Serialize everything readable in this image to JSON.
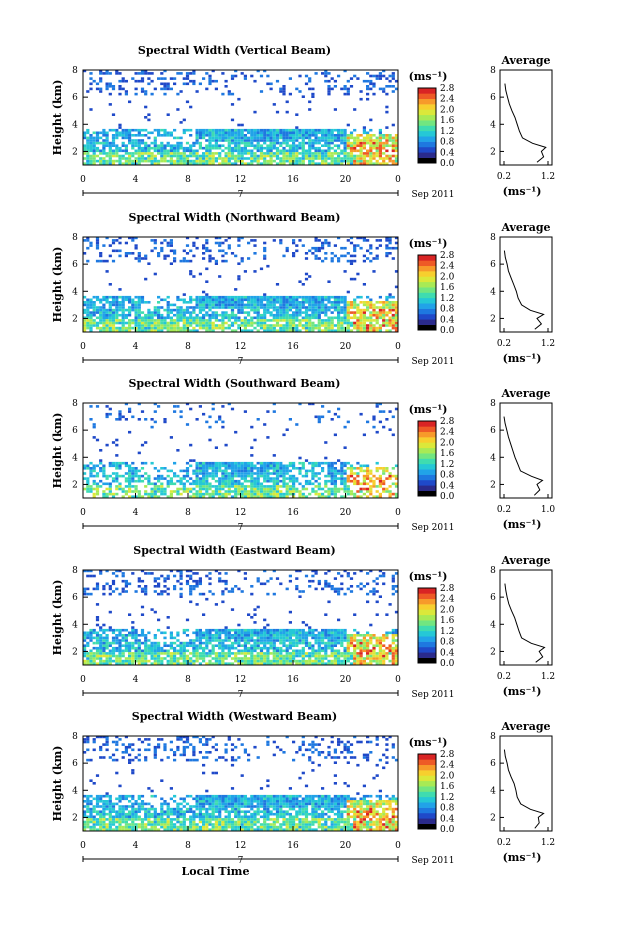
{
  "colors": {
    "colormap": [
      "#000000",
      "#2a2a8c",
      "#1f49c9",
      "#1e78e0",
      "#21a3e8",
      "#25c8d6",
      "#3fdcb0",
      "#72e680",
      "#a8ea55",
      "#dbe83a",
      "#f7cf2e",
      "#f79a2a",
      "#ee5a26",
      "#d92424"
    ],
    "axis": "#000000",
    "background": "#ffffff"
  },
  "chart_data": [
    {
      "type": "heatmap",
      "title": "Spectral Width (Vertical Beam)",
      "ylabel": "Height (km)",
      "xlabel": "",
      "x_ticks": [
        "0",
        "4",
        "8",
        "12",
        "16",
        "20",
        "0"
      ],
      "x_range": [
        0,
        24
      ],
      "day_label": "7",
      "date_label": "Sep 2011",
      "y_ticks": [
        "2",
        "4",
        "6",
        "8"
      ],
      "y_range": [
        1,
        8
      ],
      "colorbar": {
        "unit": "(ms⁻¹)",
        "ticks": [
          "0.0",
          "0.4",
          "0.8",
          "1.2",
          "1.6",
          "2.0",
          "2.4",
          "2.8"
        ],
        "range": [
          0.0,
          2.8
        ]
      },
      "profile": {
        "title": "Average",
        "xlabel": "(ms⁻¹)",
        "x_ticks": [
          "0.2",
          "1.2"
        ],
        "x_range": [
          0.2,
          1.2
        ],
        "y_ticks": [
          "2",
          "4",
          "6",
          "8"
        ],
        "y_range": [
          1,
          8
        ],
        "heights": [
          1.2,
          1.6,
          2.0,
          2.3,
          2.6,
          3.0,
          3.5,
          4.0,
          4.5,
          5.0,
          5.5,
          6.0,
          6.5,
          7.0
        ],
        "values": [
          0.95,
          1.1,
          1.05,
          1.15,
          0.85,
          0.62,
          0.55,
          0.5,
          0.45,
          0.38,
          0.32,
          0.28,
          0.24,
          0.22
        ]
      }
    },
    {
      "type": "heatmap",
      "title": "Spectral Width (Northward Beam)",
      "ylabel": "Height (km)",
      "xlabel": "",
      "x_ticks": [
        "0",
        "4",
        "8",
        "12",
        "16",
        "20",
        "0"
      ],
      "x_range": [
        0,
        24
      ],
      "day_label": "7",
      "date_label": "Sep 2011",
      "y_ticks": [
        "2",
        "4",
        "6",
        "8"
      ],
      "y_range": [
        1,
        8
      ],
      "colorbar": {
        "unit": "(ms⁻¹)",
        "ticks": [
          "0.0",
          "0.4",
          "0.8",
          "1.2",
          "1.6",
          "2.0",
          "2.4",
          "2.8"
        ],
        "range": [
          0.0,
          2.8
        ]
      },
      "profile": {
        "title": "Average",
        "xlabel": "(ms⁻¹)",
        "x_ticks": [
          "0.2",
          "1.2"
        ],
        "x_range": [
          0.2,
          1.2
        ],
        "heights": [
          1.2,
          1.6,
          2.0,
          2.3,
          2.6,
          3.0,
          3.5,
          4.0,
          4.5,
          5.0,
          5.5,
          6.0,
          6.5,
          7.0
        ],
        "values": [
          0.9,
          1.05,
          0.95,
          1.1,
          0.8,
          0.6,
          0.52,
          0.48,
          0.42,
          0.36,
          0.3,
          0.27,
          0.23,
          0.21
        ]
      }
    },
    {
      "type": "heatmap",
      "title": "Spectral Width (Southward Beam)",
      "ylabel": "Height (km)",
      "xlabel": "",
      "x_ticks": [
        "0",
        "4",
        "8",
        "12",
        "16",
        "20",
        "0"
      ],
      "x_range": [
        0,
        24
      ],
      "day_label": "7",
      "date_label": "Sep 2011",
      "y_ticks": [
        "2",
        "4",
        "6",
        "8"
      ],
      "y_range": [
        1,
        8
      ],
      "colorbar": {
        "unit": "(ms⁻¹)",
        "ticks": [
          "0.0",
          "0.4",
          "0.8",
          "1.2",
          "1.6",
          "2.0",
          "2.4",
          "2.8"
        ],
        "range": [
          0.0,
          2.8
        ]
      },
      "profile": {
        "title": "Average",
        "xlabel": "(ms⁻¹)",
        "x_ticks": [
          "0.2",
          "1.0"
        ],
        "x_range": [
          0.2,
          1.0
        ],
        "heights": [
          1.2,
          1.6,
          2.0,
          2.3,
          2.6,
          3.0,
          3.5,
          4.0,
          4.5,
          5.0,
          5.5,
          6.0,
          6.5,
          7.0
        ],
        "values": [
          0.75,
          0.85,
          0.8,
          0.9,
          0.7,
          0.5,
          0.45,
          0.4,
          0.36,
          0.32,
          0.28,
          0.25,
          0.22,
          0.2
        ]
      }
    },
    {
      "type": "heatmap",
      "title": "Spectral Width (Eastward Beam)",
      "ylabel": "Height (km)",
      "xlabel": "",
      "x_ticks": [
        "0",
        "4",
        "8",
        "12",
        "16",
        "20",
        "0"
      ],
      "x_range": [
        0,
        24
      ],
      "day_label": "7",
      "date_label": "Sep 2011",
      "y_ticks": [
        "2",
        "4",
        "6",
        "8"
      ],
      "y_range": [
        1,
        8
      ],
      "colorbar": {
        "unit": "(ms⁻¹)",
        "ticks": [
          "0.0",
          "0.4",
          "0.8",
          "1.2",
          "1.6",
          "2.0",
          "2.4",
          "2.8"
        ],
        "range": [
          0.0,
          2.8
        ]
      },
      "profile": {
        "title": "Average",
        "xlabel": "(ms⁻¹)",
        "x_ticks": [
          "0.2",
          "1.2"
        ],
        "x_range": [
          0.2,
          1.2
        ],
        "heights": [
          1.2,
          1.6,
          2.0,
          2.3,
          2.6,
          3.0,
          3.5,
          4.0,
          4.5,
          5.0,
          5.5,
          6.0,
          6.5,
          7.0
        ],
        "values": [
          0.92,
          1.08,
          1.0,
          1.12,
          0.82,
          0.6,
          0.54,
          0.49,
          0.44,
          0.37,
          0.31,
          0.27,
          0.24,
          0.22
        ]
      }
    },
    {
      "type": "heatmap",
      "title": "Spectral Width (Westward Beam)",
      "ylabel": "Height (km)",
      "xlabel": "Local Time",
      "x_ticks": [
        "0",
        "4",
        "8",
        "12",
        "16",
        "20",
        "0"
      ],
      "x_range": [
        0,
        24
      ],
      "day_label": "7",
      "date_label": "Sep 2011",
      "y_ticks": [
        "2",
        "4",
        "6",
        "8"
      ],
      "y_range": [
        1,
        8
      ],
      "colorbar": {
        "unit": "(ms⁻¹)",
        "ticks": [
          "0.0",
          "0.4",
          "0.8",
          "1.2",
          "1.6",
          "2.0",
          "2.4",
          "2.8"
        ],
        "range": [
          0.0,
          2.8
        ]
      },
      "profile": {
        "title": "Average",
        "xlabel": "(ms⁻¹)",
        "x_ticks": [
          "0.2",
          "1.2"
        ],
        "x_range": [
          0.2,
          1.2
        ],
        "heights": [
          1.2,
          1.6,
          2.0,
          2.3,
          2.6,
          3.0,
          3.5,
          4.0,
          4.5,
          5.0,
          5.5,
          6.0,
          6.5,
          7.0
        ],
        "values": [
          0.9,
          1.0,
          0.98,
          1.1,
          0.8,
          0.58,
          0.5,
          0.47,
          0.43,
          0.36,
          0.3,
          0.27,
          0.23,
          0.21
        ]
      }
    }
  ]
}
